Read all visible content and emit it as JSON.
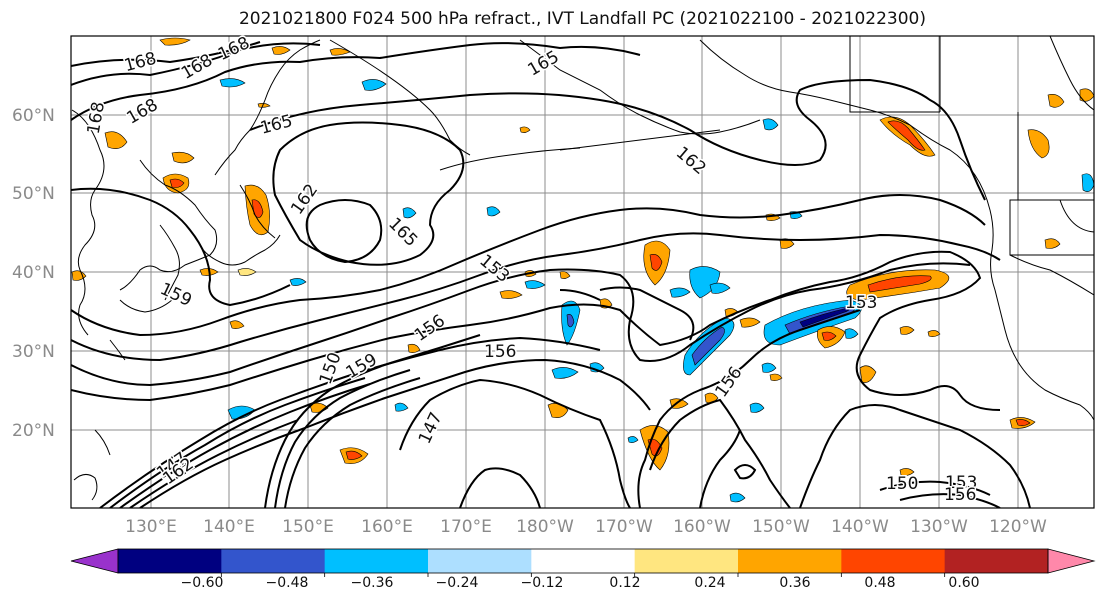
{
  "title": "2021021800 F024 500 hPa refract., IVT Landfall PC (2021022100 - 2021022300)",
  "lat_labels": [
    "60°N",
    "50°N",
    "40°N",
    "30°N",
    "20°N"
  ],
  "lon_labels": [
    "130°E",
    "140°E",
    "150°E",
    "160°E",
    "170°E",
    "180°W",
    "170°W",
    "160°W",
    "150°W",
    "140°W",
    "130°W",
    "120°W"
  ],
  "contour_labels": [
    "168",
    "168",
    "168",
    "168",
    "168",
    "165",
    "165",
    "162",
    "165",
    "162",
    "153",
    "156",
    "156",
    "159",
    "150",
    "159",
    "147",
    "156",
    "153",
    "147",
    "162",
    "150",
    "153",
    "156"
  ],
  "colorbar": {
    "ticks": [
      "−0.60",
      "−0.48",
      "−0.36",
      "−0.24",
      "−0.12",
      "0.12",
      "0.24",
      "0.36",
      "0.48",
      "0.60"
    ],
    "colors": [
      "#9932CC",
      "#000080",
      "#3355CC",
      "#00BFFF",
      "#ADDFFF",
      "#FFFFFF",
      "#FFE680",
      "#FFA500",
      "#FF4500",
      "#B22222",
      "#FF88AA"
    ]
  },
  "colors": {
    "contour": "#000000",
    "grid": "#8c8c8c",
    "coast": "#000000"
  }
}
